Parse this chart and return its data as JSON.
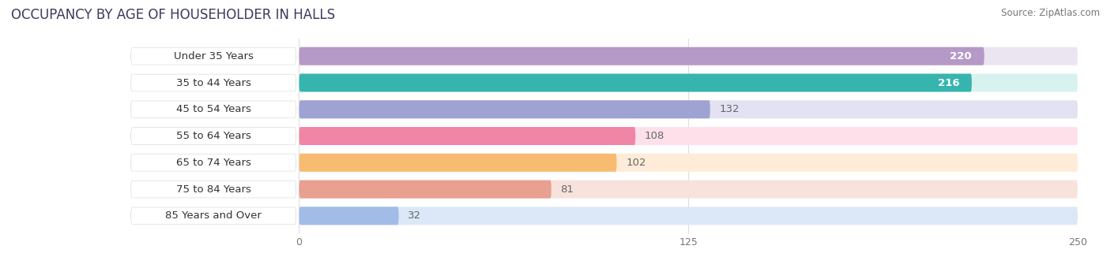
{
  "title": "OCCUPANCY BY AGE OF HOUSEHOLDER IN HALLS",
  "source": "Source: ZipAtlas.com",
  "categories": [
    "Under 35 Years",
    "35 to 44 Years",
    "45 to 54 Years",
    "55 to 64 Years",
    "65 to 74 Years",
    "75 to 84 Years",
    "85 Years and Over"
  ],
  "values": [
    220,
    216,
    132,
    108,
    102,
    81,
    32
  ],
  "bar_colors": [
    "#b599c7",
    "#36b5ae",
    "#9fa3d4",
    "#f085a5",
    "#f7bc72",
    "#e8a090",
    "#a2bce8"
  ],
  "bar_bg_colors": [
    "#eae5f0",
    "#d8f2f0",
    "#e2e2f2",
    "#fde0ea",
    "#feecd8",
    "#f8e2dc",
    "#dce8f8"
  ],
  "label_bg_color": "#ffffff",
  "xlim_min": 0,
  "xlim_max": 250,
  "xticks": [
    0,
    125,
    250
  ],
  "value_color_inside": "#ffffff",
  "value_color_outside": "#666666",
  "label_fontsize": 9.5,
  "value_fontsize": 9.5,
  "title_fontsize": 12,
  "title_color": "#3a3a5c",
  "background_color": "#ffffff",
  "bar_bg_overall": "#f0f0f4"
}
